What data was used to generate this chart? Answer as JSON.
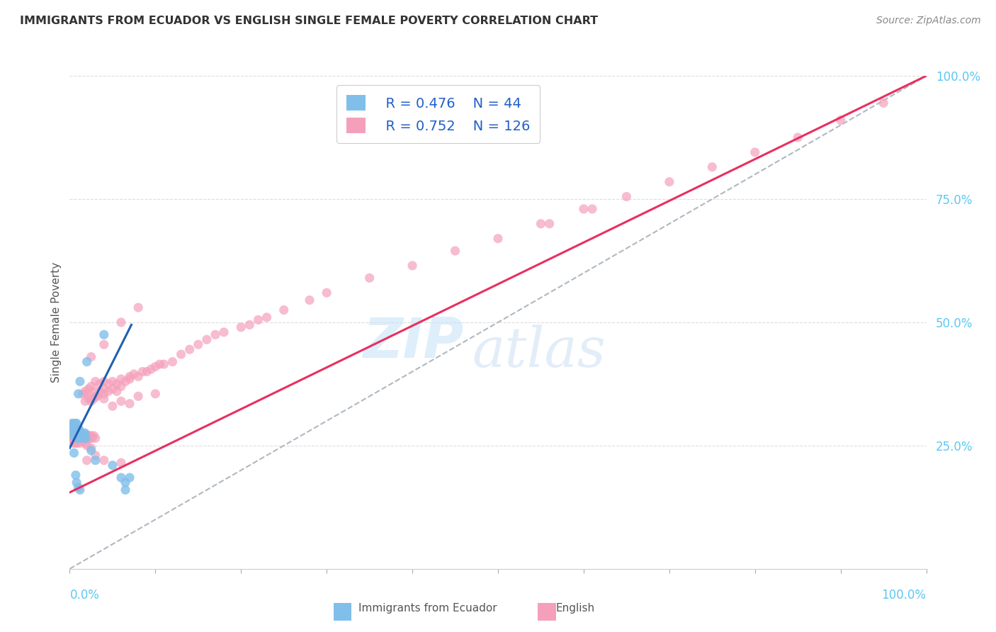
{
  "title": "IMMIGRANTS FROM ECUADOR VS ENGLISH SINGLE FEMALE POVERTY CORRELATION CHART",
  "source": "Source: ZipAtlas.com",
  "ylabel": "Single Female Poverty",
  "legend_label1": "Immigrants from Ecuador",
  "legend_label2": "English",
  "R1": "0.476",
  "N1": "44",
  "R2": "0.752",
  "N2": "126",
  "scatter_blue": [
    [
      0.003,
      0.285
    ],
    [
      0.004,
      0.295
    ],
    [
      0.004,
      0.27
    ],
    [
      0.005,
      0.295
    ],
    [
      0.005,
      0.28
    ],
    [
      0.006,
      0.285
    ],
    [
      0.006,
      0.295
    ],
    [
      0.006,
      0.275
    ],
    [
      0.007,
      0.285
    ],
    [
      0.007,
      0.275
    ],
    [
      0.007,
      0.295
    ],
    [
      0.008,
      0.285
    ],
    [
      0.008,
      0.27
    ],
    [
      0.008,
      0.295
    ],
    [
      0.009,
      0.28
    ],
    [
      0.009,
      0.265
    ],
    [
      0.01,
      0.285
    ],
    [
      0.01,
      0.275
    ],
    [
      0.011,
      0.275
    ],
    [
      0.011,
      0.265
    ],
    [
      0.012,
      0.28
    ],
    [
      0.013,
      0.275
    ],
    [
      0.014,
      0.27
    ],
    [
      0.015,
      0.27
    ],
    [
      0.016,
      0.265
    ],
    [
      0.017,
      0.27
    ],
    [
      0.018,
      0.275
    ],
    [
      0.019,
      0.265
    ],
    [
      0.01,
      0.355
    ],
    [
      0.012,
      0.38
    ],
    [
      0.02,
      0.42
    ],
    [
      0.04,
      0.475
    ],
    [
      0.005,
      0.235
    ],
    [
      0.007,
      0.19
    ],
    [
      0.008,
      0.175
    ],
    [
      0.01,
      0.165
    ],
    [
      0.012,
      0.16
    ],
    [
      0.025,
      0.24
    ],
    [
      0.03,
      0.22
    ],
    [
      0.05,
      0.21
    ],
    [
      0.06,
      0.185
    ],
    [
      0.065,
      0.175
    ],
    [
      0.07,
      0.185
    ],
    [
      0.065,
      0.16
    ]
  ],
  "scatter_pink": [
    [
      0.003,
      0.285
    ],
    [
      0.003,
      0.275
    ],
    [
      0.004,
      0.28
    ],
    [
      0.004,
      0.27
    ],
    [
      0.005,
      0.285
    ],
    [
      0.005,
      0.27
    ],
    [
      0.006,
      0.28
    ],
    [
      0.006,
      0.275
    ],
    [
      0.007,
      0.27
    ],
    [
      0.007,
      0.285
    ],
    [
      0.008,
      0.275
    ],
    [
      0.008,
      0.265
    ],
    [
      0.009,
      0.27
    ],
    [
      0.009,
      0.275
    ],
    [
      0.01,
      0.265
    ],
    [
      0.01,
      0.28
    ],
    [
      0.011,
      0.27
    ],
    [
      0.011,
      0.26
    ],
    [
      0.012,
      0.275
    ],
    [
      0.012,
      0.265
    ],
    [
      0.013,
      0.27
    ],
    [
      0.014,
      0.265
    ],
    [
      0.015,
      0.27
    ],
    [
      0.016,
      0.265
    ],
    [
      0.017,
      0.275
    ],
    [
      0.018,
      0.265
    ],
    [
      0.019,
      0.27
    ],
    [
      0.02,
      0.265
    ],
    [
      0.021,
      0.27
    ],
    [
      0.022,
      0.265
    ],
    [
      0.023,
      0.27
    ],
    [
      0.024,
      0.265
    ],
    [
      0.025,
      0.27
    ],
    [
      0.026,
      0.265
    ],
    [
      0.028,
      0.27
    ],
    [
      0.03,
      0.265
    ],
    [
      0.003,
      0.26
    ],
    [
      0.004,
      0.255
    ],
    [
      0.005,
      0.26
    ],
    [
      0.006,
      0.255
    ],
    [
      0.007,
      0.26
    ],
    [
      0.008,
      0.255
    ],
    [
      0.01,
      0.26
    ],
    [
      0.012,
      0.255
    ],
    [
      0.015,
      0.26
    ],
    [
      0.018,
      0.255
    ],
    [
      0.02,
      0.25
    ],
    [
      0.025,
      0.245
    ],
    [
      0.002,
      0.295
    ],
    [
      0.015,
      0.355
    ],
    [
      0.018,
      0.36
    ],
    [
      0.02,
      0.355
    ],
    [
      0.022,
      0.365
    ],
    [
      0.025,
      0.37
    ],
    [
      0.028,
      0.36
    ],
    [
      0.03,
      0.38
    ],
    [
      0.035,
      0.375
    ],
    [
      0.04,
      0.38
    ],
    [
      0.03,
      0.35
    ],
    [
      0.035,
      0.36
    ],
    [
      0.04,
      0.365
    ],
    [
      0.025,
      0.34
    ],
    [
      0.028,
      0.345
    ],
    [
      0.032,
      0.35
    ],
    [
      0.018,
      0.34
    ],
    [
      0.022,
      0.345
    ],
    [
      0.045,
      0.375
    ],
    [
      0.05,
      0.38
    ],
    [
      0.055,
      0.375
    ],
    [
      0.06,
      0.385
    ],
    [
      0.065,
      0.38
    ],
    [
      0.07,
      0.39
    ],
    [
      0.04,
      0.355
    ],
    [
      0.045,
      0.36
    ],
    [
      0.05,
      0.365
    ],
    [
      0.055,
      0.36
    ],
    [
      0.06,
      0.37
    ],
    [
      0.07,
      0.385
    ],
    [
      0.08,
      0.39
    ],
    [
      0.09,
      0.4
    ],
    [
      0.1,
      0.41
    ],
    [
      0.11,
      0.415
    ],
    [
      0.12,
      0.42
    ],
    [
      0.13,
      0.435
    ],
    [
      0.14,
      0.445
    ],
    [
      0.15,
      0.455
    ],
    [
      0.16,
      0.465
    ],
    [
      0.17,
      0.475
    ],
    [
      0.18,
      0.48
    ],
    [
      0.075,
      0.395
    ],
    [
      0.085,
      0.4
    ],
    [
      0.095,
      0.405
    ],
    [
      0.105,
      0.415
    ],
    [
      0.2,
      0.49
    ],
    [
      0.21,
      0.495
    ],
    [
      0.22,
      0.505
    ],
    [
      0.23,
      0.51
    ],
    [
      0.25,
      0.525
    ],
    [
      0.28,
      0.545
    ],
    [
      0.3,
      0.56
    ],
    [
      0.35,
      0.59
    ],
    [
      0.4,
      0.615
    ],
    [
      0.45,
      0.645
    ],
    [
      0.5,
      0.67
    ],
    [
      0.55,
      0.7
    ],
    [
      0.6,
      0.73
    ],
    [
      0.65,
      0.755
    ],
    [
      0.7,
      0.785
    ],
    [
      0.75,
      0.815
    ],
    [
      0.8,
      0.845
    ],
    [
      0.85,
      0.875
    ],
    [
      0.9,
      0.91
    ],
    [
      0.95,
      0.945
    ],
    [
      0.04,
      0.345
    ],
    [
      0.06,
      0.34
    ],
    [
      0.08,
      0.35
    ],
    [
      0.1,
      0.355
    ],
    [
      0.05,
      0.33
    ],
    [
      0.07,
      0.335
    ],
    [
      0.02,
      0.22
    ],
    [
      0.03,
      0.23
    ],
    [
      0.04,
      0.22
    ],
    [
      0.06,
      0.215
    ],
    [
      0.025,
      0.43
    ],
    [
      0.04,
      0.455
    ],
    [
      0.06,
      0.5
    ],
    [
      0.08,
      0.53
    ],
    [
      0.56,
      0.7
    ],
    [
      0.61,
      0.73
    ]
  ],
  "blue_line": {
    "x0": 0.0,
    "x1": 0.072,
    "y0": 0.245,
    "y1": 0.495
  },
  "pink_line": {
    "x0": 0.0,
    "x1": 1.0,
    "y0": 0.155,
    "y1": 1.0
  },
  "dashed_line": {
    "x0": 0.0,
    "x1": 1.0,
    "y0": 0.0,
    "y1": 1.0
  },
  "color_blue": "#80bfea",
  "color_blue_line": "#2060b0",
  "color_pink": "#f5a0bb",
  "color_pink_line": "#e83060",
  "color_dashed": "#b0b8c0",
  "color_right_axis": "#5bc8f5",
  "watermark_zip": "ZIP",
  "watermark_atlas": "atlas",
  "background_color": "#ffffff",
  "title_color": "#333333",
  "source_color": "#888888",
  "grid_color": "#dddddd",
  "axis_label_color": "#555555",
  "xlim": [
    0.0,
    1.0
  ],
  "ylim": [
    0.0,
    1.0
  ],
  "yticks": [
    0.25,
    0.5,
    0.75,
    1.0
  ],
  "ytick_labels": [
    "25.0%",
    "50.0%",
    "75.0%",
    "100.0%"
  ],
  "xtick_left_label": "0.0%",
  "xtick_right_label": "100.0%"
}
